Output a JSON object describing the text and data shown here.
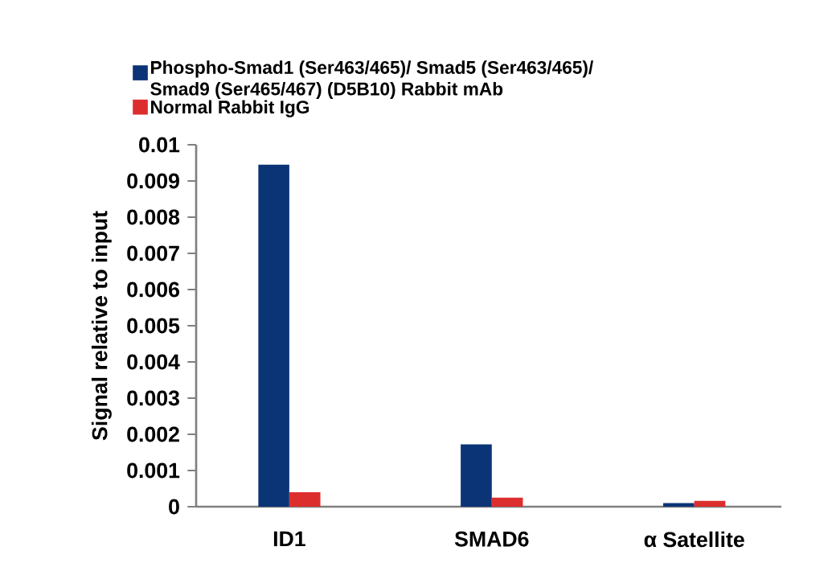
{
  "chart_data": {
    "type": "bar",
    "categories": [
      "ID1",
      "SMAD6",
      "α Satellite"
    ],
    "series": [
      {
        "name": "Phospho-Smad1 (Ser463/465)/ Smad5 (Ser463/465)/ Smad9 (Ser465/467) (D5B10) Rabbit mAb",
        "color": "#0b3477",
        "values": [
          0.00945,
          0.00172,
          0.0001
        ]
      },
      {
        "name": "Normal Rabbit IgG",
        "color": "#dd2e2e",
        "values": [
          0.0004,
          0.00025,
          0.00016
        ]
      }
    ],
    "ylabel": "Signal relative to input",
    "ylim": [
      0,
      0.01
    ],
    "yticks": [
      0,
      0.001,
      0.002,
      0.003,
      0.004,
      0.005,
      0.006,
      0.007,
      0.008,
      0.009,
      0.01
    ],
    "grid": false,
    "legend": "top"
  }
}
